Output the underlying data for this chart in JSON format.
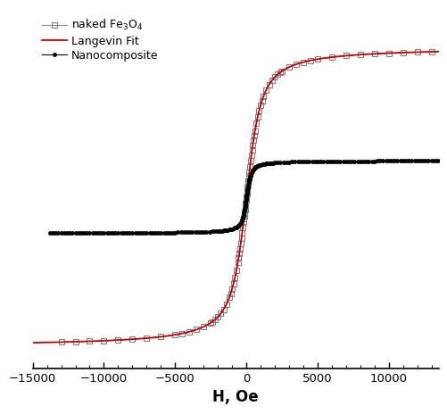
{
  "title": "",
  "xlabel": "H, Oe",
  "ylabel": "",
  "xlim": [
    -15000,
    13500
  ],
  "xticks": [
    -15000,
    -10000,
    -5000,
    0,
    5000,
    10000
  ],
  "background_color": "#ffffff",
  "fe3o4_color": "#808080",
  "langevin_color": "#cc0000",
  "nanocomposite_color": "#000000",
  "fe3o4_Ms": 70.0,
  "fe3o4_a": 400.0,
  "nano_Ms": 17.0,
  "nano_a": 120.0,
  "ylim": [
    -80,
    88
  ],
  "legend_labels": [
    "naked Fe₃O₄",
    "Langevin Fit",
    "Nanocomposite"
  ]
}
